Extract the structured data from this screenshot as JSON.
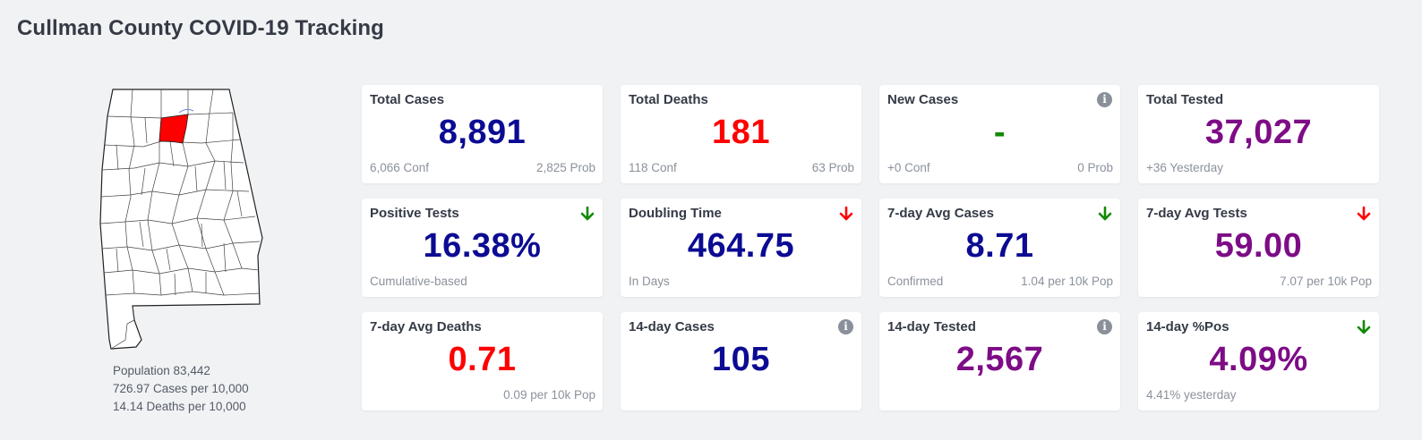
{
  "page": {
    "title": "Cullman County COVID-19 Tracking"
  },
  "map": {
    "highlight_color": "#ff0000",
    "county": "Cullman"
  },
  "county_stats": {
    "population": "Population 83,442",
    "cases_per_10k": "726.97 Cases per 10,000",
    "deaths_per_10k": "14.14 Deaths per 10,000"
  },
  "colors": {
    "navy": "#0b0b93",
    "red": "#ff0000",
    "green": "#118a00",
    "purple": "#7d0c86"
  },
  "cards": [
    {
      "title": "Total Cases",
      "value": "8,891",
      "value_color": "navy",
      "foot_left": "6,066 Conf",
      "foot_right": "2,825 Prob",
      "icon": ""
    },
    {
      "title": "Total Deaths",
      "value": "181",
      "value_color": "red",
      "foot_left": "118 Conf",
      "foot_right": "63 Prob",
      "icon": ""
    },
    {
      "title": "New Cases",
      "value": "-",
      "value_color": "green",
      "foot_left": "+0 Conf",
      "foot_right": "0 Prob",
      "icon": "info-icon"
    },
    {
      "title": "Total Tested",
      "value": "37,027",
      "value_color": "purple",
      "foot_left": "+36 Yesterday",
      "foot_right": "",
      "icon": ""
    },
    {
      "title": "Positive Tests",
      "value": "16.38%",
      "value_color": "navy",
      "foot_left": "Cumulative-based",
      "foot_right": "",
      "icon": "arrow-down-green-icon"
    },
    {
      "title": "Doubling Time",
      "value": "464.75",
      "value_color": "navy",
      "foot_left": "In Days",
      "foot_right": "",
      "icon": "arrow-down-red-icon"
    },
    {
      "title": "7-day Avg Cases",
      "value": "8.71",
      "value_color": "navy",
      "foot_left": "Confirmed",
      "foot_right": "1.04 per 10k Pop",
      "icon": "arrow-down-green-icon"
    },
    {
      "title": "7-day Avg Tests",
      "value": "59.00",
      "value_color": "purple",
      "foot_left": "",
      "foot_right": "7.07 per 10k Pop",
      "icon": "arrow-down-red-icon"
    },
    {
      "title": "7-day Avg Deaths",
      "value": "0.71",
      "value_color": "red",
      "foot_left": "",
      "foot_right": "0.09 per 10k Pop",
      "icon": ""
    },
    {
      "title": "14-day Cases",
      "value": "105",
      "value_color": "navy",
      "foot_left": "",
      "foot_right": "",
      "icon": "info-icon"
    },
    {
      "title": "14-day Tested",
      "value": "2,567",
      "value_color": "purple",
      "foot_left": "",
      "foot_right": "",
      "icon": "info-icon"
    },
    {
      "title": "14-day %Pos",
      "value": "4.09%",
      "value_color": "purple",
      "foot_left": "4.41% yesterday",
      "foot_right": "",
      "icon": "arrow-down-green-icon"
    }
  ]
}
